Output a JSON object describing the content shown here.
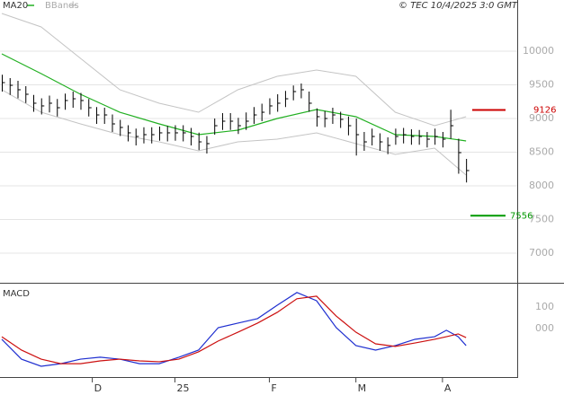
{
  "chart_data": [
    {
      "type": "ohlc",
      "credit": "© TEC 10/4/2025 3:0 GMT",
      "x": [
        0,
        2,
        4,
        6,
        8,
        10,
        12,
        14,
        16,
        18,
        20,
        22,
        24,
        26,
        28,
        30,
        32,
        34,
        36,
        38,
        40,
        42,
        44,
        46,
        48,
        50,
        52,
        54,
        56,
        58,
        60,
        62,
        64,
        66,
        68,
        70,
        72,
        74,
        76,
        78,
        80,
        82,
        84,
        86,
        88,
        90,
        92,
        94,
        96,
        98,
        100,
        102,
        104,
        106,
        108,
        110,
        112,
        114,
        116,
        118
      ],
      "high": [
        9650,
        9600,
        9560,
        9480,
        9350,
        9300,
        9340,
        9290,
        9370,
        9400,
        9380,
        9290,
        9170,
        9160,
        9060,
        8980,
        8900,
        8850,
        8870,
        8870,
        8880,
        8890,
        8900,
        8900,
        8860,
        8790,
        8740,
        9000,
        9080,
        9080,
        9010,
        9090,
        9170,
        9220,
        9300,
        9360,
        9410,
        9490,
        9520,
        9400,
        9150,
        9110,
        9160,
        9100,
        9030,
        9000,
        8800,
        8850,
        8780,
        8720,
        8850,
        8860,
        8840,
        8830,
        8800,
        8850,
        8800,
        9130,
        8700,
        8400
      ],
      "low": [
        9400,
        9350,
        9300,
        9230,
        9100,
        9060,
        9090,
        9030,
        9130,
        9160,
        9130,
        9030,
        8920,
        8920,
        8800,
        8740,
        8660,
        8600,
        8630,
        8630,
        8670,
        8660,
        8670,
        8660,
        8600,
        8530,
        8480,
        8760,
        8830,
        8830,
        8770,
        8830,
        8920,
        8960,
        9060,
        9100,
        9170,
        9270,
        9300,
        9100,
        8880,
        8870,
        8920,
        8860,
        8750,
        8450,
        8520,
        8600,
        8520,
        8470,
        8610,
        8630,
        8610,
        8610,
        8570,
        8610,
        8570,
        8700,
        8180,
        8050
      ],
      "close": [
        9533,
        9493,
        9427,
        9360,
        9227,
        9187,
        9227,
        9160,
        9267,
        9293,
        9267,
        9160,
        9053,
        9053,
        8920,
        8867,
        8787,
        8733,
        8760,
        8760,
        8787,
        8787,
        8787,
        8787,
        8733,
        8653,
        8627,
        8893,
        8960,
        8960,
        8893,
        8960,
        9053,
        9093,
        9187,
        9227,
        9293,
        9400,
        9427,
        9227,
        9027,
        9000,
        9053,
        8987,
        8893,
        8760,
        8653,
        8733,
        8653,
        8600,
        8733,
        8760,
        8733,
        8733,
        8693,
        8733,
        8693,
        8893,
        8493,
        8227
      ],
      "color": "#000000",
      "overlays": [
        {
          "name": "MA20",
          "color": "#22b022",
          "x": [
            0,
            10,
            20,
            30,
            40,
            50,
            60,
            70,
            80,
            90,
            100,
            110,
            118
          ],
          "values": [
            9960,
            9667,
            9360,
            9093,
            8920,
            8760,
            8827,
            9000,
            9133,
            9027,
            8760,
            8733,
            8667
          ]
        },
        {
          "name": "BBands",
          "color": "#c4c4c4",
          "x": [
            0,
            10,
            20,
            30,
            40,
            50,
            60,
            70,
            80,
            90,
            100,
            110,
            118
          ],
          "upper": [
            10560,
            10360,
            9893,
            9427,
            9227,
            9093,
            9427,
            9627,
            9720,
            9627,
            9093,
            8893,
            9027
          ],
          "lower": [
            9427,
            9093,
            8920,
            8760,
            8653,
            8520,
            8653,
            8693,
            8787,
            8627,
            8467,
            8560,
            8160
          ]
        }
      ],
      "levels": [
        {
          "value": 9126,
          "color": "#cc0000"
        },
        {
          "value": 7556,
          "color": "#009900"
        }
      ],
      "xlim": [
        0,
        131
      ],
      "ylim": [
        6560,
        10760
      ],
      "yticks": [
        7000,
        7500,
        8000,
        8500,
        9000,
        9500,
        10000
      ],
      "grid": true
    },
    {
      "type": "line",
      "title": "MACD",
      "series": [
        {
          "color": "#1f2fd0",
          "x": [
            0,
            5,
            10,
            15,
            20,
            25,
            30,
            35,
            40,
            45,
            50,
            55,
            60,
            65,
            70,
            75,
            80,
            85,
            90,
            95,
            100,
            105,
            110,
            113,
            116,
            118
          ],
          "values": [
            -50,
            -142,
            -175,
            -163,
            -142,
            -133,
            -142,
            -163,
            -163,
            -133,
            -100,
            4,
            25,
            46,
            108,
            167,
            129,
            4,
            -79,
            -100,
            -79,
            -50,
            -38,
            -8,
            -38,
            -79
          ]
        },
        {
          "color": "#cc1010",
          "x": [
            0,
            5,
            10,
            15,
            20,
            25,
            30,
            35,
            40,
            45,
            50,
            55,
            60,
            65,
            70,
            75,
            80,
            85,
            90,
            95,
            100,
            105,
            110,
            113,
            116,
            118
          ],
          "values": [
            -38,
            -100,
            -142,
            -163,
            -163,
            -150,
            -142,
            -150,
            -154,
            -142,
            -108,
            -58,
            -17,
            25,
            75,
            138,
            150,
            58,
            -17,
            -71,
            -83,
            -67,
            -50,
            -38,
            -25,
            -42
          ]
        }
      ],
      "xlim": [
        0,
        131
      ],
      "ylim": [
        -225,
        208
      ],
      "yticks": [
        {
          "value": 0,
          "label": "000"
        },
        100
      ],
      "xticks": [
        {
          "value": 23,
          "label": "D"
        },
        {
          "value": 44,
          "label": "25"
        },
        {
          "value": 68,
          "label": "F"
        },
        {
          "value": 90,
          "label": "M"
        },
        {
          "value": 112,
          "label": "A"
        }
      ]
    }
  ]
}
